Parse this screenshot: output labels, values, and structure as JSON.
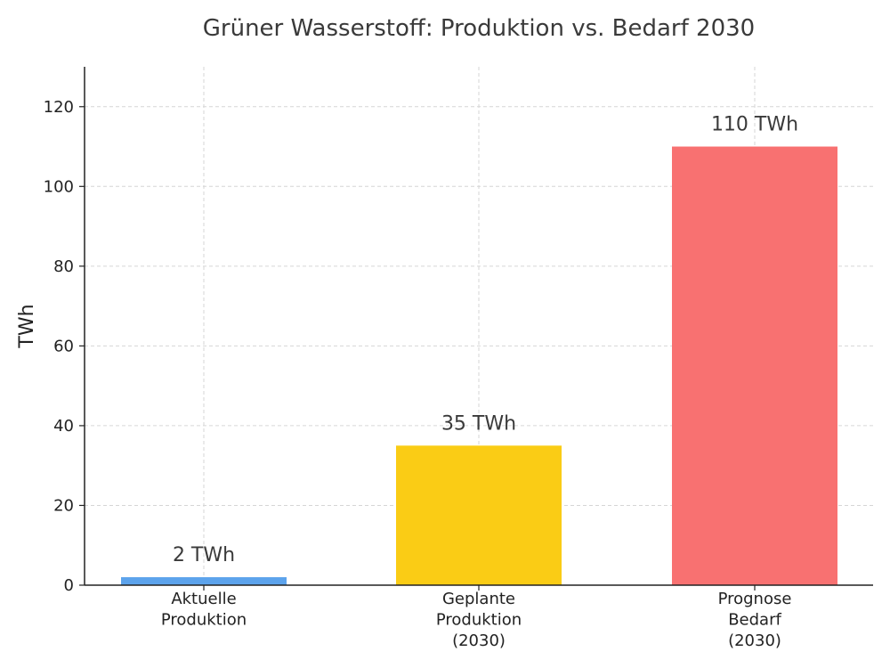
{
  "chart_data": {
    "type": "bar",
    "title": "Grüner Wasserstoff: Produktion vs. Bedarf 2030",
    "xlabel": "",
    "ylabel": "TWh",
    "ylim": [
      0,
      130
    ],
    "yticks": [
      0,
      20,
      40,
      60,
      80,
      100,
      120
    ],
    "grid": true,
    "categories": [
      [
        "Aktuelle",
        "Produktion"
      ],
      [
        "Geplante",
        "Produktion",
        "(2030)"
      ],
      [
        "Prognose",
        "Bedarf",
        "(2030)"
      ]
    ],
    "values": [
      2,
      35,
      110
    ],
    "data_labels": [
      "2 TWh",
      "35 TWh",
      "110 TWh"
    ],
    "colors": [
      "#5ca3ec",
      "#facc15",
      "#f87171"
    ]
  }
}
